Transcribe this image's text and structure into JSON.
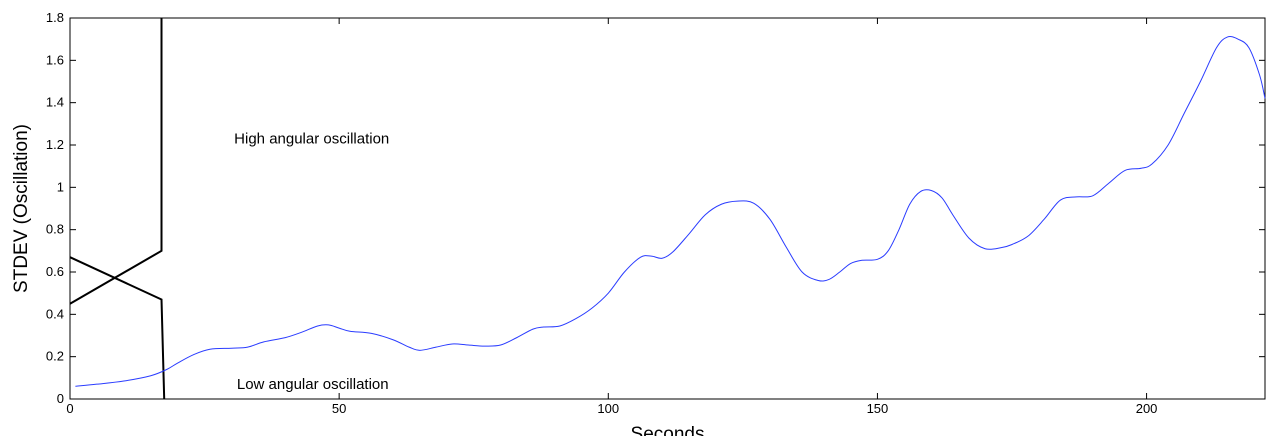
{
  "chart_data": {
    "type": "line",
    "xlabel": "Seconds",
    "ylabel": "STDEV (Oscillation)",
    "xlim": [
      0,
      222
    ],
    "ylim": [
      0,
      1.8
    ],
    "x_ticks": [
      0,
      50,
      100,
      150,
      200
    ],
    "y_ticks": [
      0,
      0.2,
      0.4,
      0.6,
      0.8,
      1,
      1.2,
      1.4,
      1.6,
      1.8
    ],
    "x_tick_labels": [
      "0",
      "50",
      "100",
      "150",
      "200"
    ],
    "y_tick_labels": [
      "0",
      "0.2",
      "0.4",
      "0.6",
      "0.8",
      "1",
      "1.2",
      "1.4",
      "1.6",
      "1.8"
    ],
    "grid": false,
    "annotations": [
      {
        "text": "High angular oscillation",
        "x": 30.5,
        "y": 1.23
      },
      {
        "text": "Low angular oscillation",
        "x": 31,
        "y": 0.07
      }
    ],
    "series": [
      {
        "color": "#2a3cff",
        "x": [
          1,
          5,
          10,
          15,
          18,
          20,
          23,
          26,
          30,
          33,
          36,
          40,
          43,
          46,
          48,
          50,
          52,
          56,
          60,
          63,
          65,
          68,
          71,
          74,
          77,
          80,
          83,
          86,
          88,
          91,
          94,
          97,
          100,
          103,
          106,
          108,
          110,
          112,
          115,
          118,
          121,
          124,
          127,
          130,
          133,
          136,
          139,
          141,
          143,
          145,
          147,
          150,
          152,
          154,
          156,
          158,
          160,
          162,
          164,
          167,
          170,
          173,
          175,
          178,
          181,
          184,
          187,
          190,
          193,
          196,
          199,
          201,
          204,
          207,
          210,
          213,
          215,
          217,
          219,
          221,
          222
        ],
        "y": [
          0.06,
          0.07,
          0.085,
          0.11,
          0.14,
          0.17,
          0.21,
          0.235,
          0.24,
          0.245,
          0.27,
          0.29,
          0.315,
          0.345,
          0.35,
          0.335,
          0.32,
          0.31,
          0.28,
          0.245,
          0.23,
          0.245,
          0.26,
          0.255,
          0.25,
          0.255,
          0.29,
          0.33,
          0.34,
          0.345,
          0.38,
          0.43,
          0.5,
          0.6,
          0.67,
          0.675,
          0.665,
          0.695,
          0.78,
          0.87,
          0.92,
          0.935,
          0.925,
          0.85,
          0.72,
          0.6,
          0.56,
          0.565,
          0.6,
          0.64,
          0.655,
          0.66,
          0.7,
          0.8,
          0.92,
          0.98,
          0.985,
          0.95,
          0.87,
          0.76,
          0.71,
          0.715,
          0.73,
          0.77,
          0.85,
          0.94,
          0.955,
          0.96,
          1.02,
          1.08,
          1.09,
          1.11,
          1.2,
          1.35,
          1.5,
          1.66,
          1.71,
          1.7,
          1.66,
          1.53,
          1.42
        ]
      }
    ],
    "boundary_lines": [
      {
        "color": "#000000",
        "x": [
          0,
          17,
          17
        ],
        "y": [
          0.45,
          0.7,
          1.8
        ]
      },
      {
        "color": "#000000",
        "x": [
          0,
          17,
          17.5
        ],
        "y": [
          0.67,
          0.47,
          0
        ]
      }
    ]
  }
}
